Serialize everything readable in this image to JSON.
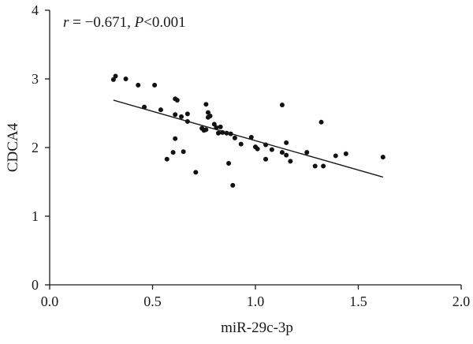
{
  "chart_data": {
    "type": "scatter",
    "annotation": {
      "r_symbol": "r",
      "r_value": " = −0.671, ",
      "p_symbol": "P",
      "p_value": "<0.001"
    },
    "xlabel": "miR-29c-3p",
    "ylabel": "CDCA4",
    "xlim": [
      0,
      2
    ],
    "ylim": [
      0,
      4
    ],
    "xticks": [
      "0.0",
      "0.5",
      "1.0",
      "1.5",
      "2.0"
    ],
    "yticks": [
      "0",
      "1",
      "2",
      "3",
      "4"
    ],
    "grid": false,
    "legend": "none",
    "points": [
      {
        "x": 0.31,
        "y": 2.99
      },
      {
        "x": 0.32,
        "y": 3.04
      },
      {
        "x": 0.37,
        "y": 3.0
      },
      {
        "x": 0.43,
        "y": 2.91
      },
      {
        "x": 0.46,
        "y": 2.59
      },
      {
        "x": 0.51,
        "y": 2.91
      },
      {
        "x": 0.54,
        "y": 2.55
      },
      {
        "x": 0.57,
        "y": 1.83
      },
      {
        "x": 0.6,
        "y": 1.93
      },
      {
        "x": 0.61,
        "y": 2.48
      },
      {
        "x": 0.61,
        "y": 2.13
      },
      {
        "x": 0.61,
        "y": 2.71
      },
      {
        "x": 0.62,
        "y": 2.69
      },
      {
        "x": 0.64,
        "y": 2.45
      },
      {
        "x": 0.65,
        "y": 1.94
      },
      {
        "x": 0.67,
        "y": 2.38
      },
      {
        "x": 0.67,
        "y": 2.49
      },
      {
        "x": 0.71,
        "y": 1.64
      },
      {
        "x": 0.74,
        "y": 2.28
      },
      {
        "x": 0.75,
        "y": 2.25
      },
      {
        "x": 0.76,
        "y": 2.63
      },
      {
        "x": 0.76,
        "y": 2.26
      },
      {
        "x": 0.77,
        "y": 2.51
      },
      {
        "x": 0.77,
        "y": 2.44
      },
      {
        "x": 0.78,
        "y": 2.46
      },
      {
        "x": 0.8,
        "y": 2.34
      },
      {
        "x": 0.81,
        "y": 2.29
      },
      {
        "x": 0.82,
        "y": 2.21
      },
      {
        "x": 0.83,
        "y": 2.3
      },
      {
        "x": 0.84,
        "y": 2.22
      },
      {
        "x": 0.86,
        "y": 2.21
      },
      {
        "x": 0.87,
        "y": 1.77
      },
      {
        "x": 0.88,
        "y": 2.2
      },
      {
        "x": 0.89,
        "y": 1.45
      },
      {
        "x": 0.9,
        "y": 2.14
      },
      {
        "x": 0.93,
        "y": 2.05
      },
      {
        "x": 0.98,
        "y": 2.15
      },
      {
        "x": 1.0,
        "y": 2.01
      },
      {
        "x": 1.01,
        "y": 1.98
      },
      {
        "x": 1.05,
        "y": 1.83
      },
      {
        "x": 1.05,
        "y": 2.04
      },
      {
        "x": 1.08,
        "y": 1.97
      },
      {
        "x": 1.13,
        "y": 1.93
      },
      {
        "x": 1.13,
        "y": 2.62
      },
      {
        "x": 1.15,
        "y": 1.89
      },
      {
        "x": 1.15,
        "y": 2.07
      },
      {
        "x": 1.17,
        "y": 1.8
      },
      {
        "x": 1.25,
        "y": 1.93
      },
      {
        "x": 1.29,
        "y": 1.73
      },
      {
        "x": 1.32,
        "y": 2.37
      },
      {
        "x": 1.33,
        "y": 1.73
      },
      {
        "x": 1.39,
        "y": 1.88
      },
      {
        "x": 1.44,
        "y": 1.91
      },
      {
        "x": 1.62,
        "y": 1.86
      }
    ],
    "fit_line": {
      "x": [
        0.31,
        1.62
      ],
      "y": [
        2.69,
        1.57
      ]
    }
  }
}
